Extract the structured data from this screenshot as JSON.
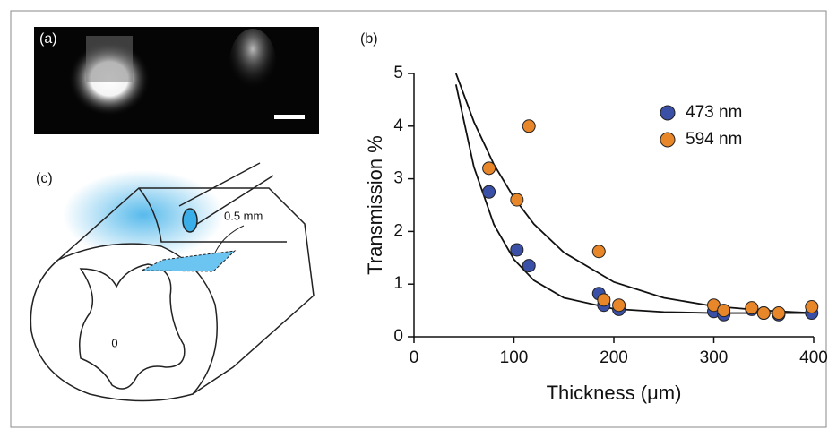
{
  "figure": {
    "panel_labels": [
      "(a)",
      "(b)",
      "(c)"
    ],
    "annotation": "0.5 mm",
    "section_label": "0"
  },
  "chart_data": {
    "type": "scatter",
    "x_label": "Thickness (μm)",
    "y_label": "Transmission %",
    "xlim": [
      0,
      400
    ],
    "ylim": [
      0,
      5
    ],
    "xticks": [
      0,
      100,
      200,
      300,
      400
    ],
    "yticks": [
      0,
      1,
      2,
      3,
      4,
      5
    ],
    "legend": "upper right",
    "series": [
      {
        "name": "473 nm",
        "color": "#3a4fa6",
        "x": [
          75,
          103,
          115,
          185,
          190,
          205,
          300,
          310,
          338,
          350,
          365,
          398
        ],
        "values": [
          2.75,
          1.65,
          1.35,
          0.82,
          0.6,
          0.52,
          0.48,
          0.42,
          0.52,
          0.45,
          0.42,
          0.45
        ]
      },
      {
        "name": "594 nm",
        "color": "#e8862a",
        "x": [
          75,
          103,
          115,
          185,
          190,
          205,
          300,
          310,
          338,
          350,
          365,
          398
        ],
        "values": [
          3.2,
          2.6,
          4.0,
          1.62,
          0.7,
          0.6,
          0.6,
          0.5,
          0.55,
          0.45,
          0.45,
          0.57
        ]
      }
    ],
    "fit_curves": [
      {
        "color": "#111111",
        "x": [
          42,
          60,
          80,
          100,
          120,
          150,
          200,
          250,
          300,
          400
        ],
        "values": [
          4.79,
          3.22,
          2.13,
          1.47,
          1.07,
          0.74,
          0.53,
          0.47,
          0.45,
          0.45
        ]
      },
      {
        "color": "#111111",
        "x": [
          42,
          60,
          80,
          100,
          120,
          150,
          200,
          250,
          300,
          350,
          400
        ],
        "values": [
          5.0,
          4.08,
          3.27,
          2.64,
          2.14,
          1.6,
          1.04,
          0.74,
          0.58,
          0.5,
          0.45
        ]
      }
    ]
  }
}
